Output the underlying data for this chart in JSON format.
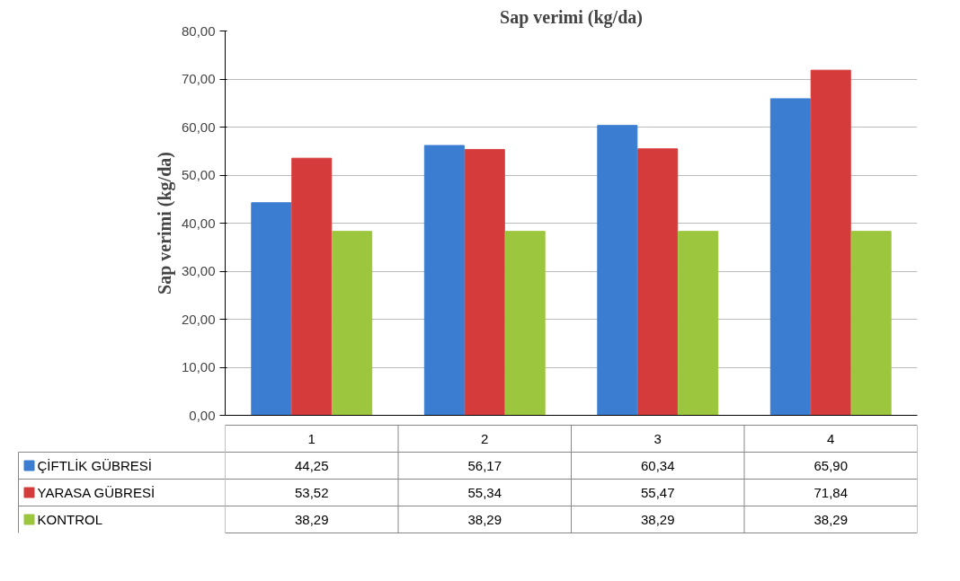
{
  "chart_data": {
    "type": "bar",
    "title": "Sap verimi (kg/da)",
    "ylabel": "Sap verimi (kg/da)",
    "categories": [
      "1",
      "2",
      "3",
      "4"
    ],
    "series": [
      {
        "name": "ÇİFTLİK GÜBRESİ",
        "color": "#3b7dd0",
        "values": [
          44.25,
          56.17,
          60.34,
          65.9
        ],
        "value_labels": [
          "44,25",
          "56,17",
          "60,34",
          "65,90"
        ]
      },
      {
        "name": "YARASA GÜBRESİ",
        "color": "#d63b3b",
        "values": [
          53.52,
          55.34,
          55.47,
          71.84
        ],
        "value_labels": [
          "53,52",
          "55,34",
          "55,47",
          "71,84"
        ]
      },
      {
        "name": "KONTROL",
        "color": "#9cc63e",
        "values": [
          38.29,
          38.29,
          38.29,
          38.29
        ],
        "value_labels": [
          "38,29",
          "38,29",
          "38,29",
          "38,29"
        ]
      }
    ],
    "ylim": [
      0,
      80
    ],
    "yticks": [
      {
        "value": 0,
        "label": "0,00"
      },
      {
        "value": 10,
        "label": "10,00"
      },
      {
        "value": 20,
        "label": "20,00"
      },
      {
        "value": 30,
        "label": "30,00"
      },
      {
        "value": 40,
        "label": "40,00"
      },
      {
        "value": 50,
        "label": "50,00"
      },
      {
        "value": 60,
        "label": "60,00"
      },
      {
        "value": 70,
        "label": "70,00"
      },
      {
        "value": 80,
        "label": "80,00"
      }
    ],
    "grid": "y",
    "legend": "bottom"
  }
}
